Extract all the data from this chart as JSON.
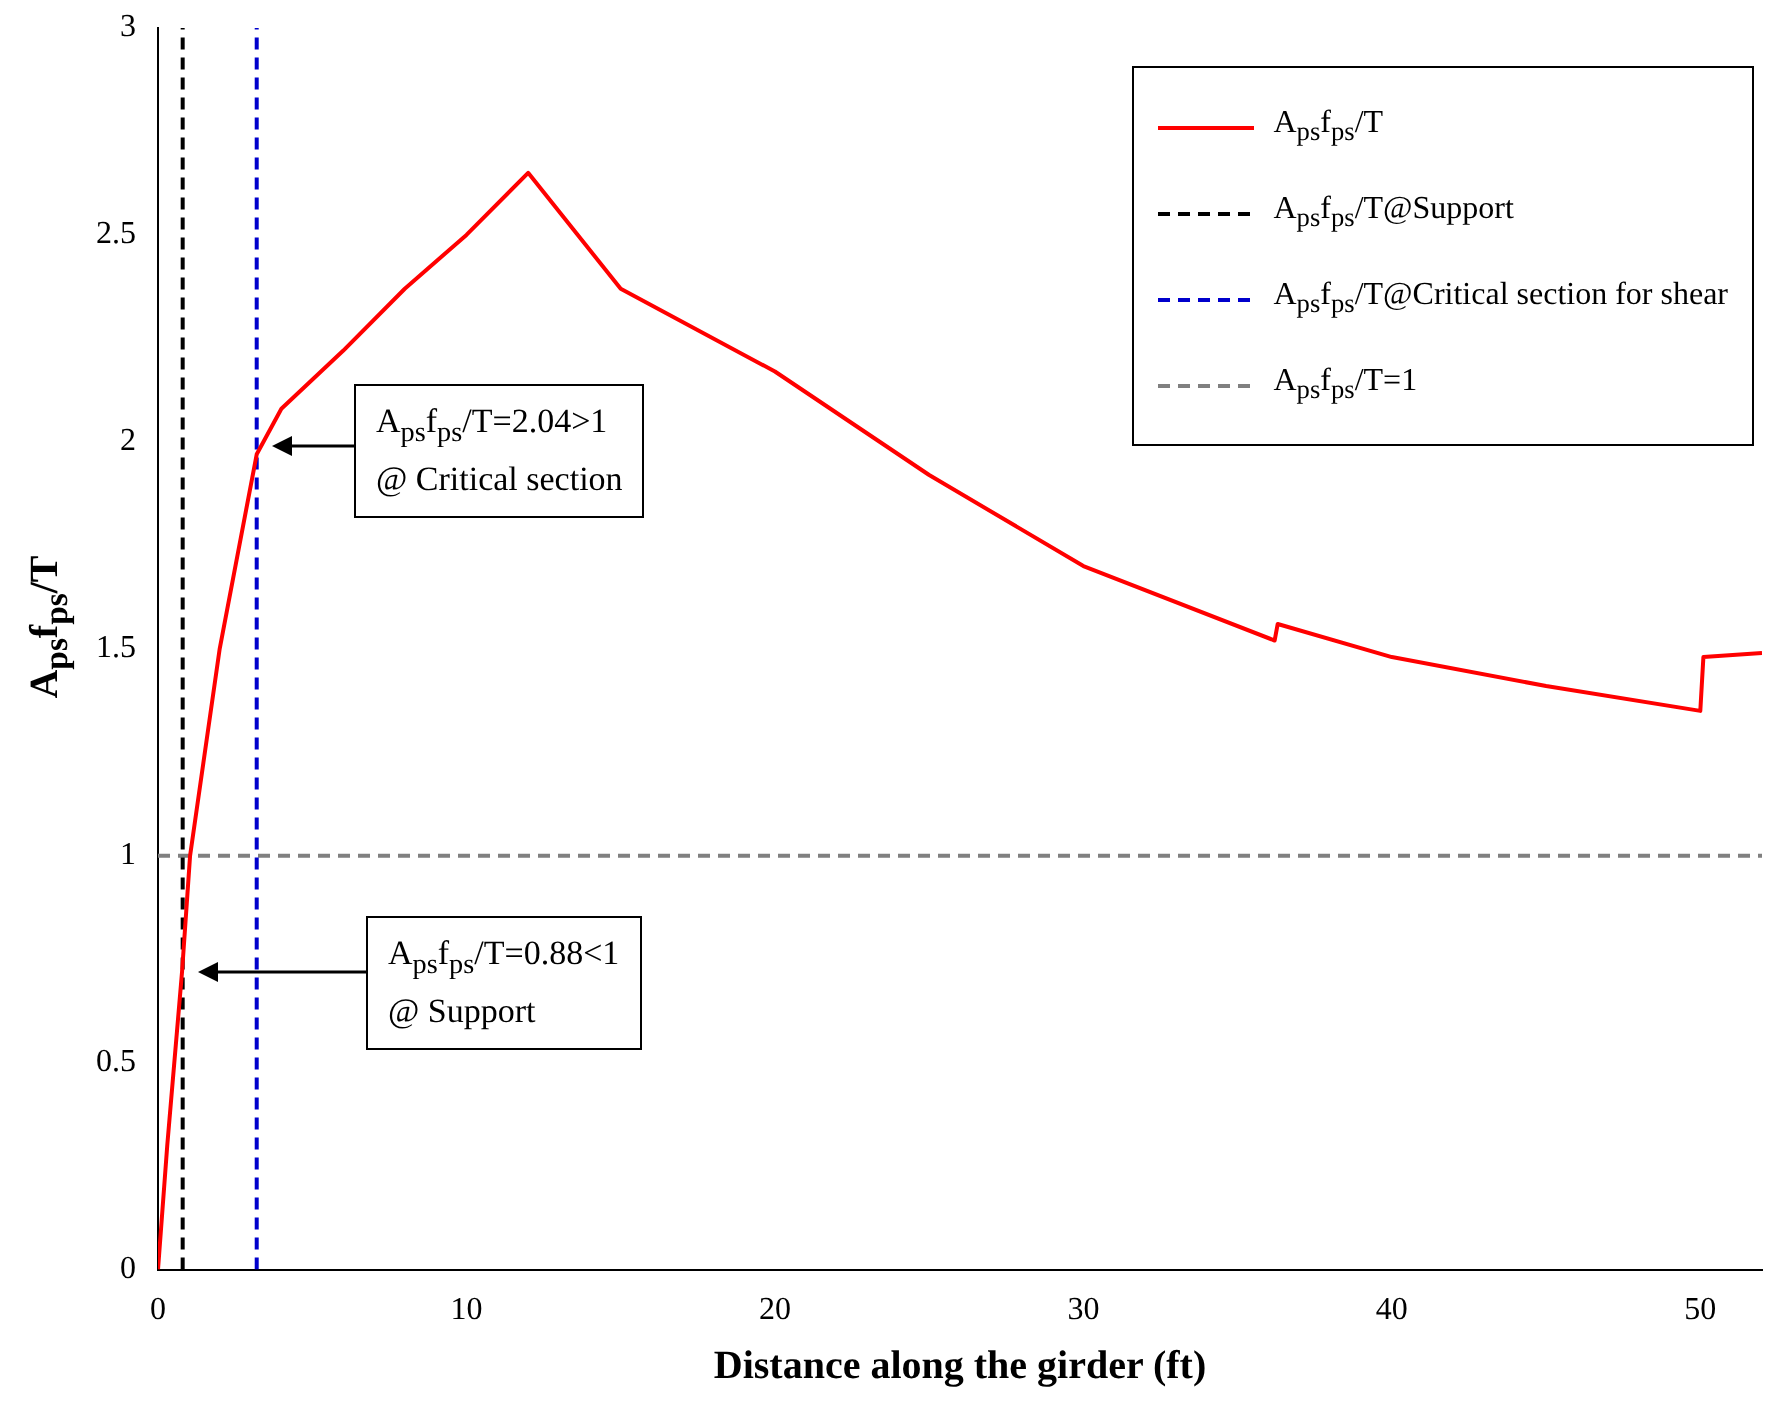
{
  "chart_data": {
    "type": "line",
    "xlabel": "Distance along the girder (ft)",
    "ylabel": "A$_{ps}$f$_{ps}$/T",
    "xlim": [
      0,
      52
    ],
    "ylim": [
      0,
      3
    ],
    "xticks": [
      0,
      10,
      20,
      30,
      40,
      50
    ],
    "yticks": [
      0,
      0.5,
      1,
      1.5,
      2,
      2.5,
      3
    ],
    "grid": false,
    "legend": "top right",
    "marker": "none",
    "series": [
      {
        "name": "A$_{ps}$f$_{ps}$/T",
        "color": "#ff0000",
        "line_style": "solid",
        "x": [
          0,
          0.3,
          0.78,
          1.04,
          2,
          3.2,
          4,
          6,
          8,
          10,
          12,
          15,
          20,
          25,
          30,
          36.2,
          36.3,
          40,
          45,
          50,
          50.1,
          52
        ],
        "values": [
          0,
          0.3,
          0.72,
          1.0,
          1.5,
          1.97,
          2.08,
          2.22,
          2.37,
          2.5,
          2.65,
          2.37,
          2.17,
          1.92,
          1.7,
          1.52,
          1.56,
          1.48,
          1.41,
          1.35,
          1.48,
          1.49
        ]
      },
      {
        "name": "A$_{ps}$f$_{ps}$/T@Support",
        "color": "#000000",
        "line_style": "dashed",
        "x": [
          0.8,
          0.8
        ],
        "values": [
          0,
          3
        ]
      },
      {
        "name": "A$_{ps}$f$_{ps}$/T@Critical section for shear",
        "color": "#0000cc",
        "line_style": "dashed",
        "x": [
          3.2,
          3.2
        ],
        "values": [
          0,
          3
        ]
      },
      {
        "name": "A$_{ps}$f$_{ps}$/T=1",
        "color": "#808080",
        "line_style": "dashed",
        "x": [
          0,
          52
        ],
        "values": [
          1,
          1
        ]
      }
    ],
    "annotations": [
      "A$_{ps}$f$_{ps}$/T=2.04>1\n@ Critical section",
      "A$_{ps}$f$_{ps}$/T=0.88<1\n@ Support"
    ]
  }
}
